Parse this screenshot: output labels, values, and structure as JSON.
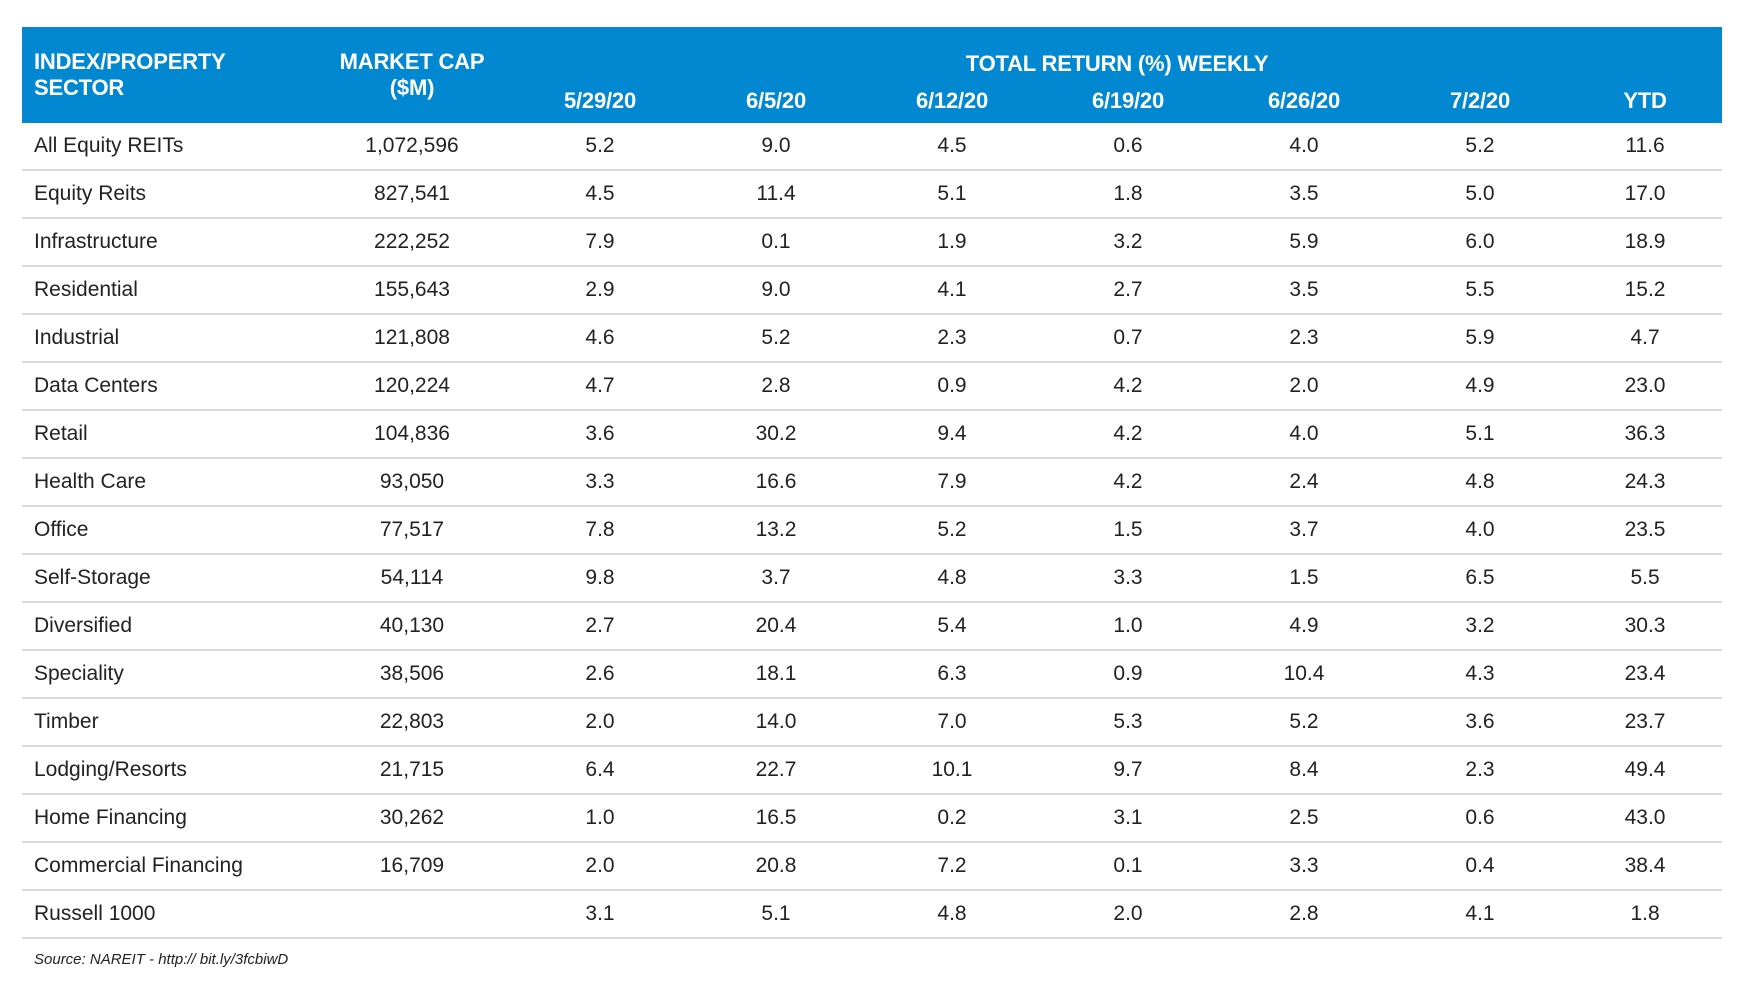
{
  "colors": {
    "header_bg": "#0288d1",
    "header_text": "#ffffff",
    "row_divider": "#d9d9d9"
  },
  "header": {
    "sector": "INDEX/PROPERTY SECTOR",
    "market_cap": "MARKET CAP ($M)",
    "group": "TOTAL RETURN (%) WEEKLY",
    "dates": [
      "5/29/20",
      "6/5/20",
      "6/12/20",
      "6/19/20",
      "6/26/20",
      "7/2/20",
      "YTD"
    ]
  },
  "rows": [
    {
      "sector": "All Equity REITs",
      "cap": "1,072,596",
      "values": [
        "5.2",
        "9.0",
        "4.5",
        "0.6",
        "4.0",
        "5.2",
        "11.6"
      ]
    },
    {
      "sector": "Equity Reits",
      "cap": "827,541",
      "values": [
        "4.5",
        "11.4",
        "5.1",
        "1.8",
        "3.5",
        "5.0",
        "17.0"
      ]
    },
    {
      "sector": "Infrastructure",
      "cap": "222,252",
      "values": [
        "7.9",
        "0.1",
        "1.9",
        "3.2",
        "5.9",
        "6.0",
        "18.9"
      ]
    },
    {
      "sector": "Residential",
      "cap": "155,643",
      "values": [
        "2.9",
        "9.0",
        "4.1",
        "2.7",
        "3.5",
        "5.5",
        "15.2"
      ]
    },
    {
      "sector": "Industrial",
      "cap": "121,808",
      "values": [
        "4.6",
        "5.2",
        "2.3",
        "0.7",
        "2.3",
        "5.9",
        "4.7"
      ]
    },
    {
      "sector": "Data Centers",
      "cap": "120,224",
      "values": [
        "4.7",
        "2.8",
        "0.9",
        "4.2",
        "2.0",
        "4.9",
        "23.0"
      ]
    },
    {
      "sector": "Retail",
      "cap": "104,836",
      "values": [
        "3.6",
        "30.2",
        "9.4",
        "4.2",
        "4.0",
        "5.1",
        "36.3"
      ]
    },
    {
      "sector": "Health Care",
      "cap": "93,050",
      "values": [
        "3.3",
        "16.6",
        "7.9",
        "4.2",
        "2.4",
        "4.8",
        "24.3"
      ]
    },
    {
      "sector": "Office",
      "cap": "77,517",
      "values": [
        "7.8",
        "13.2",
        "5.2",
        "1.5",
        "3.7",
        "4.0",
        "23.5"
      ]
    },
    {
      "sector": "Self-Storage",
      "cap": "54,114",
      "values": [
        "9.8",
        "3.7",
        "4.8",
        "3.3",
        "1.5",
        "6.5",
        "5.5"
      ]
    },
    {
      "sector": "Diversified",
      "cap": "40,130",
      "values": [
        "2.7",
        "20.4",
        "5.4",
        "1.0",
        "4.9",
        "3.2",
        "30.3"
      ]
    },
    {
      "sector": "Speciality",
      "cap": "38,506",
      "values": [
        "2.6",
        "18.1",
        "6.3",
        "0.9",
        "10.4",
        "4.3",
        "23.4"
      ]
    },
    {
      "sector": "Timber",
      "cap": "22,803",
      "values": [
        "2.0",
        "14.0",
        "7.0",
        "5.3",
        "5.2",
        "3.6",
        "23.7"
      ]
    },
    {
      "sector": "Lodging/Resorts",
      "cap": "21,715",
      "values": [
        "6.4",
        "22.7",
        "10.1",
        "9.7",
        "8.4",
        "2.3",
        "49.4"
      ]
    },
    {
      "sector": "Home Financing",
      "cap": "30,262",
      "values": [
        "1.0",
        "16.5",
        "0.2",
        "3.1",
        "2.5",
        "0.6",
        "43.0"
      ]
    },
    {
      "sector": "Commercial Financing",
      "cap": "16,709",
      "values": [
        "2.0",
        "20.8",
        "7.2",
        "0.1",
        "3.3",
        "0.4",
        "38.4"
      ]
    },
    {
      "sector": "Russell 1000",
      "cap": "",
      "values": [
        "3.1",
        "5.1",
        "4.8",
        "2.0",
        "2.8",
        "4.1",
        "1.8"
      ]
    }
  ],
  "source": "Source: NAREIT - http:// bit.ly/3fcbiwD"
}
